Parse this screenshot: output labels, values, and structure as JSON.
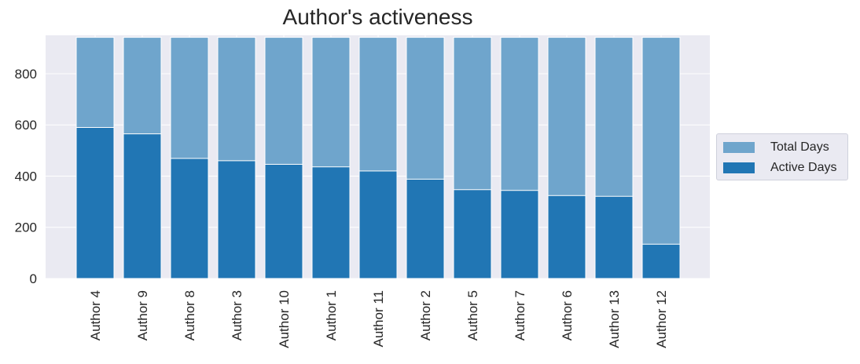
{
  "chart_data": {
    "type": "bar",
    "stacked": "overlay",
    "title": "Author's activeness",
    "xlabel": "",
    "ylabel": "",
    "categories": [
      "Author 4",
      "Author 9",
      "Author 8",
      "Author 3",
      "Author 10",
      "Author 1",
      "Author 11",
      "Author 2",
      "Author 5",
      "Author 7",
      "Author 6",
      "Author 13",
      "Author 12"
    ],
    "series": [
      {
        "name": "Total Days",
        "color": "#6fa5cc",
        "values": [
          942,
          942,
          942,
          942,
          942,
          942,
          942,
          942,
          942,
          942,
          942,
          942,
          942
        ]
      },
      {
        "name": "Active Days",
        "color": "#2176b4",
        "values": [
          590,
          565,
          469,
          460,
          446,
          436,
          420,
          388,
          347,
          344,
          324,
          321,
          134
        ]
      }
    ],
    "ylim": [
      0,
      950
    ],
    "yticks": [
      0,
      200,
      400,
      600,
      800
    ],
    "grid": true,
    "legend": "right",
    "background": "#eaeaf2"
  }
}
